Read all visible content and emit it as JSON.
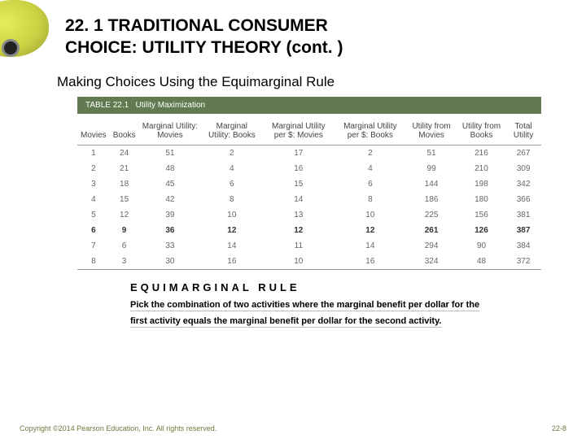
{
  "header": {
    "title_line1": "22. 1 TRADITIONAL CONSUMER",
    "title_line2": "CHOICE: UTILITY THEORY (cont. )"
  },
  "subtitle": "Making Choices Using the Equimarginal Rule",
  "table": {
    "banner_prefix": "TABLE 22.1",
    "banner_title": "Utility Maximization",
    "columns": [
      "Movies",
      "Books",
      "Marginal Utility: Movies",
      "Marginal Utility: Books",
      "Marginal Utility per $: Movies",
      "Marginal Utility per $: Books",
      "Utility from Movies",
      "Utility from Books",
      "Total Utility"
    ],
    "rows": [
      [
        "1",
        "24",
        "51",
        "2",
        "17",
        "2",
        "51",
        "216",
        "267"
      ],
      [
        "2",
        "21",
        "48",
        "4",
        "16",
        "4",
        "99",
        "210",
        "309"
      ],
      [
        "3",
        "18",
        "45",
        "6",
        "15",
        "6",
        "144",
        "198",
        "342"
      ],
      [
        "4",
        "15",
        "42",
        "8",
        "14",
        "8",
        "186",
        "180",
        "366"
      ],
      [
        "5",
        "12",
        "39",
        "10",
        "13",
        "10",
        "225",
        "156",
        "381"
      ],
      [
        "6",
        "9",
        "36",
        "12",
        "12",
        "12",
        "261",
        "126",
        "387"
      ],
      [
        "7",
        "6",
        "33",
        "14",
        "11",
        "14",
        "294",
        "90",
        "384"
      ],
      [
        "8",
        "3",
        "30",
        "16",
        "10",
        "16",
        "324",
        "48",
        "372"
      ]
    ],
    "highlight_row_index": 5
  },
  "rule": {
    "heading": "EQUIMARGINAL RULE",
    "text": "Pick the combination of two activities where the marginal benefit per dollar for the first activity equals the marginal benefit per dollar for the second activity."
  },
  "footer": {
    "copyright": "Copyright ©2014 Pearson Education, Inc. All rights reserved.",
    "page": "22-8"
  },
  "colors": {
    "table_banner_bg": "#617a50",
    "accent_text": "#6a7a3f"
  }
}
